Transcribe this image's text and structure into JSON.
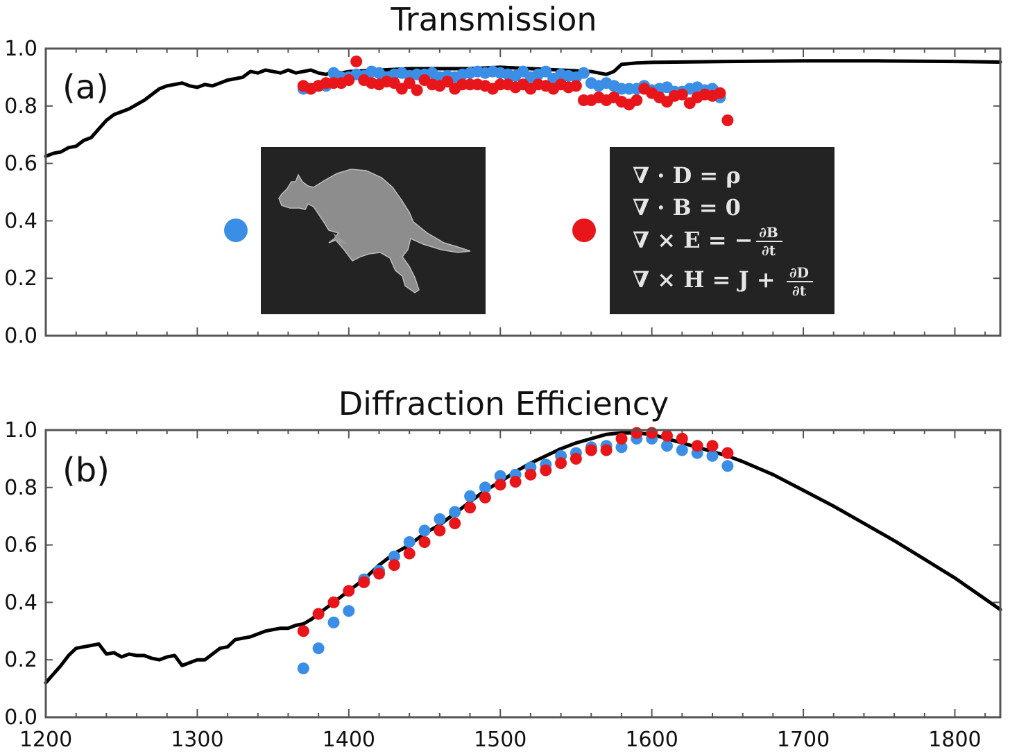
{
  "chart_data": [
    {
      "type": "line",
      "title": "Transmission",
      "panel_label": "(a)",
      "xlim": [
        1200,
        1830
      ],
      "ylim": [
        0,
        1
      ],
      "yticks": [
        0.0,
        0.2,
        0.4,
        0.6,
        0.8,
        1.0
      ],
      "ytick_labels": [
        "0.0",
        "0.2",
        "0.4",
        "0.6",
        "0.8",
        "1.0"
      ],
      "xticks": [
        1200,
        1300,
        1400,
        1500,
        1600,
        1700,
        1800
      ],
      "xtick_labels": [],
      "grid": false,
      "legend": [
        {
          "color": "#3a8ee6",
          "icon": "kangaroo-image"
        },
        {
          "color": "#e8161b",
          "icon": "maxwell-equations-image"
        }
      ],
      "series": [
        {
          "style": "line",
          "color": "#000000",
          "x": [
            1200,
            1205,
            1210,
            1215,
            1220,
            1225,
            1230,
            1235,
            1240,
            1245,
            1250,
            1255,
            1260,
            1265,
            1270,
            1275,
            1280,
            1285,
            1290,
            1295,
            1300,
            1305,
            1310,
            1315,
            1320,
            1325,
            1330,
            1335,
            1340,
            1345,
            1350,
            1355,
            1360,
            1365,
            1370,
            1375,
            1380,
            1385,
            1390,
            1395,
            1400,
            1420,
            1440,
            1460,
            1480,
            1500,
            1520,
            1540,
            1560,
            1570,
            1575,
            1580,
            1590,
            1600,
            1650,
            1700,
            1750,
            1800,
            1830
          ],
          "y": [
            0.625,
            0.635,
            0.64,
            0.655,
            0.66,
            0.68,
            0.69,
            0.72,
            0.75,
            0.77,
            0.78,
            0.79,
            0.805,
            0.82,
            0.84,
            0.86,
            0.87,
            0.875,
            0.88,
            0.87,
            0.865,
            0.875,
            0.87,
            0.88,
            0.89,
            0.895,
            0.9,
            0.92,
            0.915,
            0.925,
            0.92,
            0.915,
            0.925,
            0.915,
            0.92,
            0.925,
            0.915,
            0.91,
            0.92,
            0.915,
            0.92,
            0.925,
            0.93,
            0.93,
            0.93,
            0.935,
            0.93,
            0.925,
            0.92,
            0.91,
            0.92,
            0.945,
            0.95,
            0.952,
            0.955,
            0.957,
            0.957,
            0.955,
            0.953
          ]
        },
        {
          "style": "scatter",
          "color": "#3a8ee6",
          "x": [
            1370,
            1375,
            1380,
            1385,
            1390,
            1395,
            1400,
            1405,
            1410,
            1415,
            1420,
            1425,
            1430,
            1435,
            1440,
            1445,
            1450,
            1455,
            1460,
            1465,
            1470,
            1475,
            1480,
            1485,
            1490,
            1495,
            1500,
            1505,
            1510,
            1515,
            1520,
            1525,
            1530,
            1535,
            1540,
            1545,
            1550,
            1555,
            1560,
            1565,
            1570,
            1575,
            1580,
            1585,
            1590,
            1595,
            1600,
            1605,
            1610,
            1615,
            1620,
            1625,
            1630,
            1635,
            1640,
            1645
          ],
          "y": [
            0.86,
            0.86,
            0.87,
            0.87,
            0.915,
            0.9,
            0.9,
            0.91,
            0.905,
            0.92,
            0.915,
            0.9,
            0.91,
            0.915,
            0.905,
            0.91,
            0.91,
            0.915,
            0.9,
            0.905,
            0.9,
            0.91,
            0.915,
            0.92,
            0.915,
            0.92,
            0.915,
            0.91,
            0.905,
            0.92,
            0.9,
            0.91,
            0.92,
            0.895,
            0.91,
            0.905,
            0.9,
            0.915,
            0.88,
            0.87,
            0.88,
            0.87,
            0.86,
            0.86,
            0.86,
            0.87,
            0.855,
            0.86,
            0.865,
            0.85,
            0.85,
            0.86,
            0.865,
            0.855,
            0.86,
            0.83
          ]
        },
        {
          "style": "scatter",
          "color": "#e8161b",
          "x": [
            1370,
            1375,
            1380,
            1385,
            1390,
            1395,
            1400,
            1405,
            1410,
            1415,
            1420,
            1425,
            1430,
            1435,
            1440,
            1445,
            1450,
            1455,
            1460,
            1465,
            1470,
            1475,
            1480,
            1485,
            1490,
            1495,
            1500,
            1505,
            1510,
            1515,
            1520,
            1525,
            1530,
            1535,
            1540,
            1545,
            1550,
            1555,
            1560,
            1565,
            1570,
            1575,
            1580,
            1585,
            1590,
            1595,
            1600,
            1605,
            1610,
            1615,
            1620,
            1625,
            1630,
            1635,
            1640,
            1645,
            1650
          ],
          "y": [
            0.87,
            0.86,
            0.87,
            0.88,
            0.88,
            0.88,
            0.89,
            0.955,
            0.89,
            0.88,
            0.875,
            0.885,
            0.88,
            0.86,
            0.88,
            0.855,
            0.89,
            0.875,
            0.87,
            0.885,
            0.86,
            0.875,
            0.875,
            0.875,
            0.87,
            0.86,
            0.875,
            0.875,
            0.865,
            0.875,
            0.86,
            0.875,
            0.87,
            0.86,
            0.875,
            0.865,
            0.87,
            0.82,
            0.82,
            0.83,
            0.82,
            0.83,
            0.815,
            0.805,
            0.82,
            0.86,
            0.845,
            0.83,
            0.815,
            0.835,
            0.84,
            0.81,
            0.83,
            0.84,
            0.835,
            0.845,
            0.75
          ]
        }
      ]
    },
    {
      "type": "line",
      "title": "Diffraction Efficiency",
      "panel_label": "(b)",
      "xlim": [
        1200,
        1830
      ],
      "ylim": [
        0,
        1
      ],
      "yticks": [
        0.0,
        0.2,
        0.4,
        0.6,
        0.8,
        1.0
      ],
      "ytick_labels": [
        "0.0",
        "0.2",
        "0.4",
        "0.6",
        "0.8",
        "1.0"
      ],
      "xticks": [
        1200,
        1300,
        1400,
        1500,
        1600,
        1700,
        1800
      ],
      "xtick_labels": [
        "1200",
        "1300",
        "1400",
        "1500",
        "1600",
        "1700",
        "1800"
      ],
      "grid": false,
      "series": [
        {
          "style": "line",
          "color": "#000000",
          "x": [
            1200,
            1205,
            1210,
            1215,
            1220,
            1225,
            1230,
            1235,
            1240,
            1245,
            1250,
            1255,
            1260,
            1265,
            1270,
            1275,
            1280,
            1285,
            1290,
            1295,
            1300,
            1305,
            1310,
            1315,
            1320,
            1325,
            1330,
            1335,
            1340,
            1345,
            1350,
            1355,
            1360,
            1365,
            1370,
            1375,
            1380,
            1390,
            1400,
            1410,
            1420,
            1430,
            1440,
            1450,
            1460,
            1470,
            1480,
            1490,
            1500,
            1510,
            1520,
            1530,
            1540,
            1550,
            1560,
            1570,
            1580,
            1590,
            1600,
            1610,
            1620,
            1630,
            1640,
            1650,
            1660,
            1680,
            1700,
            1720,
            1740,
            1760,
            1780,
            1800,
            1830
          ],
          "y": [
            0.12,
            0.15,
            0.18,
            0.215,
            0.24,
            0.245,
            0.25,
            0.255,
            0.22,
            0.225,
            0.21,
            0.22,
            0.215,
            0.215,
            0.205,
            0.2,
            0.21,
            0.215,
            0.18,
            0.19,
            0.2,
            0.2,
            0.22,
            0.24,
            0.245,
            0.27,
            0.275,
            0.28,
            0.29,
            0.3,
            0.305,
            0.31,
            0.31,
            0.32,
            0.325,
            0.34,
            0.36,
            0.4,
            0.44,
            0.48,
            0.53,
            0.57,
            0.6,
            0.64,
            0.67,
            0.71,
            0.75,
            0.79,
            0.82,
            0.855,
            0.885,
            0.91,
            0.935,
            0.955,
            0.97,
            0.985,
            0.99,
            0.99,
            0.985,
            0.97,
            0.955,
            0.94,
            0.925,
            0.91,
            0.89,
            0.845,
            0.79,
            0.735,
            0.675,
            0.615,
            0.55,
            0.485,
            0.375
          ]
        },
        {
          "style": "scatter",
          "color": "#3a8ee6",
          "x": [
            1370,
            1380,
            1390,
            1400,
            1410,
            1420,
            1430,
            1440,
            1450,
            1460,
            1470,
            1480,
            1490,
            1500,
            1510,
            1520,
            1530,
            1540,
            1550,
            1560,
            1570,
            1580,
            1590,
            1600,
            1610,
            1620,
            1630,
            1640,
            1650
          ],
          "y": [
            0.17,
            0.24,
            0.33,
            0.37,
            0.48,
            0.51,
            0.56,
            0.61,
            0.65,
            0.69,
            0.715,
            0.77,
            0.8,
            0.84,
            0.845,
            0.87,
            0.88,
            0.91,
            0.92,
            0.94,
            0.945,
            0.94,
            0.97,
            0.97,
            0.945,
            0.93,
            0.92,
            0.91,
            0.875
          ]
        },
        {
          "style": "scatter",
          "color": "#e8161b",
          "x": [
            1370,
            1380,
            1390,
            1400,
            1410,
            1420,
            1430,
            1440,
            1450,
            1460,
            1470,
            1480,
            1490,
            1500,
            1510,
            1520,
            1530,
            1540,
            1550,
            1560,
            1570,
            1580,
            1590,
            1600,
            1610,
            1620,
            1630,
            1640,
            1650
          ],
          "y": [
            0.3,
            0.36,
            0.4,
            0.44,
            0.47,
            0.5,
            0.53,
            0.57,
            0.61,
            0.65,
            0.675,
            0.73,
            0.765,
            0.81,
            0.82,
            0.845,
            0.86,
            0.885,
            0.9,
            0.93,
            0.93,
            0.97,
            0.99,
            0.99,
            0.98,
            0.97,
            0.945,
            0.945,
            0.92
          ]
        }
      ]
    }
  ],
  "inset_images": [
    {
      "name": "kangaroo-image"
    },
    {
      "name": "maxwell-equations-image",
      "lines": [
        "∇ · D = ρ",
        "∇ · B = 0",
        "∇ × E = −",
        "∇ × H = J +"
      ],
      "fractions": [
        {
          "num": "∂B",
          "den": "∂t"
        },
        {
          "num": "∂D",
          "den": "∂t"
        }
      ]
    }
  ]
}
